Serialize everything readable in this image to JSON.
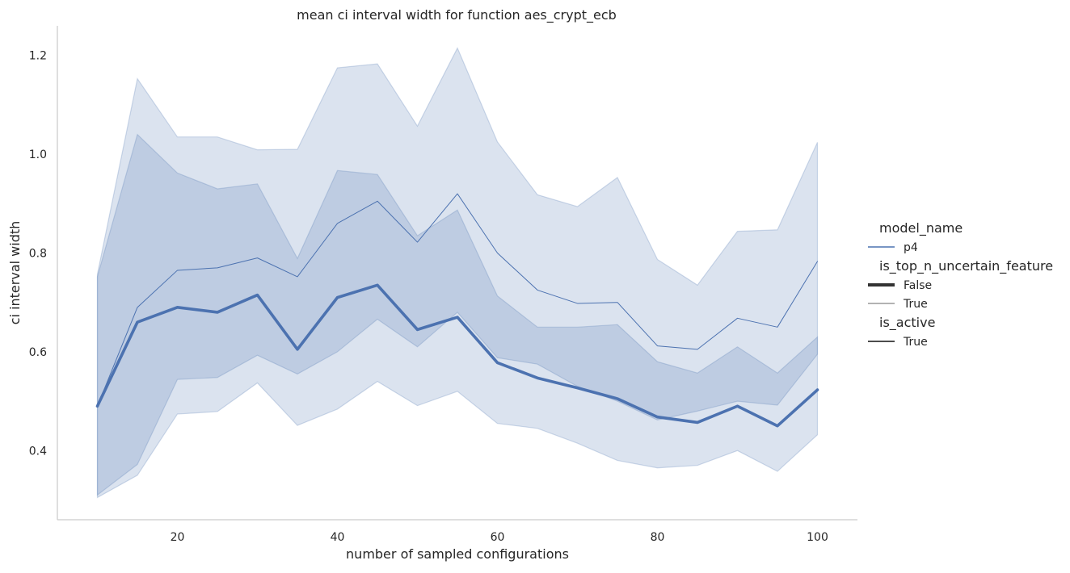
{
  "chart_data": {
    "type": "line",
    "title": "mean ci interval width for function aes_crypt_ecb",
    "xlabel": "number of sampled configurations",
    "ylabel": "ci interval width",
    "xlim": [
      5,
      105
    ],
    "ylim": [
      0.26,
      1.26
    ],
    "xticks": [
      20,
      40,
      60,
      80,
      100
    ],
    "yticks": [
      0.4,
      0.6,
      0.8,
      1.0,
      1.2
    ],
    "xtick_labels": [
      "20",
      "40",
      "60",
      "80",
      "100"
    ],
    "ytick_labels": [
      "0.4",
      "0.6",
      "0.8",
      "1.0",
      "1.2"
    ],
    "grid": false,
    "legend_placement": "right",
    "color": "#4c72b0",
    "x": [
      10,
      15,
      20,
      25,
      30,
      35,
      40,
      45,
      50,
      55,
      60,
      65,
      70,
      75,
      80,
      85,
      90,
      95,
      100
    ],
    "series": [
      {
        "name": "False",
        "values": [
          0.49,
          0.66,
          0.69,
          0.68,
          0.715,
          0.605,
          0.71,
          0.735,
          0.645,
          0.67,
          0.578,
          0.547,
          0.527,
          0.505,
          0.468,
          0.457,
          0.49,
          0.45,
          0.523
        ],
        "ci_upper": [
          0.752,
          1.04,
          0.962,
          0.93,
          0.94,
          0.789,
          0.967,
          0.959,
          0.835,
          0.887,
          0.713,
          0.65,
          0.65,
          0.655,
          0.58,
          0.557,
          0.61,
          0.557,
          0.63
        ],
        "ci_lower": [
          0.31,
          0.372,
          0.544,
          0.548,
          0.593,
          0.555,
          0.6,
          0.666,
          0.61,
          0.68,
          0.588,
          0.575,
          0.53,
          0.5,
          0.462,
          0.48,
          0.5,
          0.492,
          0.595
        ]
      },
      {
        "name": "True",
        "values": [
          0.49,
          0.69,
          0.765,
          0.77,
          0.79,
          0.752,
          0.86,
          0.905,
          0.822,
          0.92,
          0.8,
          0.725,
          0.698,
          0.7,
          0.612,
          0.605,
          0.668,
          0.65,
          0.783
        ],
        "ci_upper": [
          0.757,
          1.153,
          1.035,
          1.035,
          1.009,
          1.01,
          1.175,
          1.183,
          1.057,
          1.215,
          1.025,
          0.918,
          0.894,
          0.953,
          0.787,
          0.735,
          0.844,
          0.847,
          1.024
        ],
        "ci_lower": [
          0.305,
          0.35,
          0.474,
          0.479,
          0.537,
          0.451,
          0.484,
          0.54,
          0.491,
          0.52,
          0.455,
          0.445,
          0.415,
          0.38,
          0.365,
          0.37,
          0.4,
          0.358,
          0.432
        ]
      }
    ],
    "legend": {
      "groups": [
        {
          "title": "model_name",
          "entries": [
            {
              "label": "p4",
              "style": "color"
            }
          ]
        },
        {
          "title": "is_top_n_uncertain_feature",
          "entries": [
            {
              "label": "False",
              "style": "thick"
            },
            {
              "label": "True",
              "style": "thin"
            }
          ]
        },
        {
          "title": "is_active",
          "entries": [
            {
              "label": "True",
              "style": "dark"
            }
          ]
        }
      ]
    }
  }
}
